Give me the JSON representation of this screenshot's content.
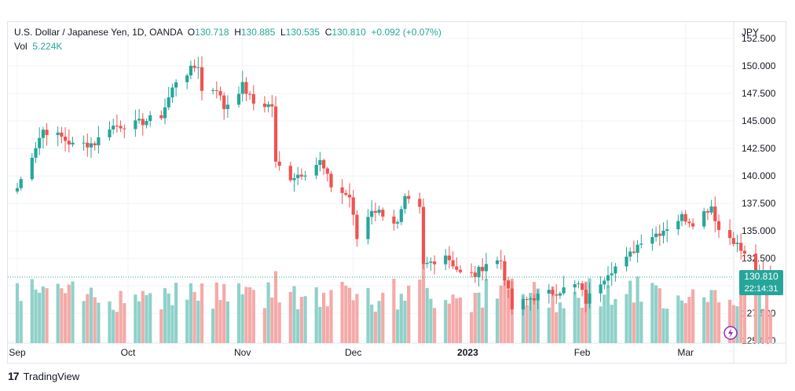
{
  "symbol": {
    "name": "U.S. Dollar / Japanese Yen, 1D, OANDA",
    "o_label": "O",
    "o": "130.718",
    "h_label": "H",
    "h": "130.885",
    "l_label": "L",
    "l": "130.535",
    "c_label": "C",
    "c": "130.810",
    "change": "+0.092 (+0.07%)"
  },
  "volume": {
    "label": "Vol",
    "value": "5.224K"
  },
  "currency": "JPY",
  "last_price": {
    "value": "130.810",
    "countdown": "22:14:31"
  },
  "branding": {
    "name": "TradingView"
  },
  "colors": {
    "up": "#26a69a",
    "down": "#ef5350",
    "up_vol": "#8fd1c9",
    "down_vol": "#f4aaa8",
    "grid": "#f0f3fa",
    "text": "#131722"
  },
  "chart_data": {
    "type": "candlestick",
    "y_ticks": [
      "125.000",
      "127.500",
      "130.000",
      "132.500",
      "135.000",
      "137.500",
      "140.000",
      "142.500",
      "145.000",
      "147.500",
      "150.000",
      "152.500"
    ],
    "ylim": [
      124.8,
      154.0
    ],
    "x_ticks": [
      {
        "label": "Sep",
        "date": "2022-09-01"
      },
      {
        "label": "Oct",
        "date": "2022-10-01"
      },
      {
        "label": "Nov",
        "date": "2022-11-01"
      },
      {
        "label": "Dec",
        "date": "2022-12-01"
      },
      {
        "label": "2023",
        "date": "2023-01-01"
      },
      {
        "label": "Feb",
        "date": "2023-02-01"
      },
      {
        "label": "Mar",
        "date": "2023-03-01"
      }
    ],
    "grid": true,
    "close_anchors": [
      [
        "2022-09-01",
        138.9
      ],
      [
        "2022-09-07",
        143.5
      ],
      [
        "2022-09-08",
        144.2
      ],
      [
        "2022-09-13",
        143.5
      ],
      [
        "2022-09-16",
        142.8
      ],
      [
        "2022-09-22",
        143.0
      ],
      [
        "2022-09-26",
        144.5
      ],
      [
        "2022-10-03",
        144.7
      ],
      [
        "2022-10-10",
        145.5
      ],
      [
        "2022-10-14",
        148.7
      ],
      [
        "2022-10-20",
        150.1
      ],
      [
        "2022-10-21",
        147.7
      ],
      [
        "2022-10-25",
        148.0
      ],
      [
        "2022-10-27",
        146.2
      ],
      [
        "2022-11-01",
        148.2
      ],
      [
        "2022-11-04",
        146.6
      ],
      [
        "2022-11-09",
        146.4
      ],
      [
        "2022-11-10",
        141.1
      ],
      [
        "2022-11-14",
        139.9
      ],
      [
        "2022-11-18",
        140.4
      ],
      [
        "2022-11-22",
        141.3
      ],
      [
        "2022-11-25",
        139.1
      ],
      [
        "2022-11-30",
        138.1
      ],
      [
        "2022-12-02",
        134.3
      ],
      [
        "2022-12-06",
        137.0
      ],
      [
        "2022-12-09",
        136.6
      ],
      [
        "2022-12-13",
        135.6
      ],
      [
        "2022-12-15",
        137.8
      ],
      [
        "2022-12-19",
        136.9
      ],
      [
        "2022-12-20",
        131.8
      ],
      [
        "2022-12-26",
        132.9
      ],
      [
        "2022-12-30",
        131.1
      ],
      [
        "2023-01-03",
        131.0
      ],
      [
        "2023-01-06",
        132.1
      ],
      [
        "2023-01-10",
        132.3
      ],
      [
        "2023-01-13",
        127.9
      ],
      [
        "2023-01-18",
        128.9
      ],
      [
        "2023-01-25",
        129.5
      ],
      [
        "2023-01-31",
        130.1
      ],
      [
        "2023-02-02",
        128.6
      ],
      [
        "2023-02-08",
        131.3
      ],
      [
        "2023-02-13",
        132.4
      ],
      [
        "2023-02-17",
        134.2
      ],
      [
        "2023-02-22",
        134.9
      ],
      [
        "2023-02-28",
        136.3
      ],
      [
        "2023-03-03",
        135.8
      ],
      [
        "2023-03-08",
        137.3
      ],
      [
        "2023-03-10",
        135.1
      ],
      [
        "2023-03-14",
        134.2
      ],
      [
        "2023-03-20",
        131.3
      ],
      [
        "2023-03-23",
        130.7
      ],
      [
        "2023-03-24",
        130.8
      ]
    ]
  }
}
